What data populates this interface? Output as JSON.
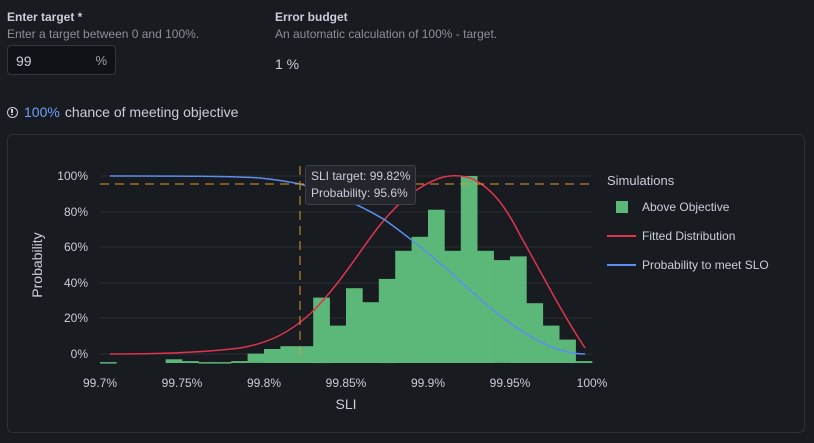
{
  "target_field": {
    "label": "Enter target *",
    "description": "Enter a target between 0 and 100%.",
    "value": "99",
    "suffix": "%"
  },
  "error_budget": {
    "label": "Error budget",
    "description": "An automatic calculation of 100% - target.",
    "value": "1 %"
  },
  "chance": {
    "icon": "info-circle-icon",
    "percent": "100%",
    "text": "chance of meeting objective"
  },
  "tooltip": {
    "line1": "SLI target: 99.82%",
    "line2": "Probability: 95.6%"
  },
  "legend": {
    "title": "Simulations",
    "items": [
      {
        "label": "Above Objective",
        "type": "box",
        "color": "#5cb879"
      },
      {
        "label": "Fitted Distribution",
        "type": "line",
        "color": "#e0344f"
      },
      {
        "label": "Probability to meet SLO",
        "type": "line",
        "color": "#5a8ef0"
      }
    ]
  },
  "chart_data": {
    "type": "bar",
    "title": "",
    "xlabel": "SLI",
    "ylabel": "Probability",
    "x_ticks": [
      "99.7%",
      "99.75%",
      "99.8%",
      "99.85%",
      "99.9%",
      "99.95%",
      "100%"
    ],
    "y_ticks": [
      "0%",
      "20%",
      "40%",
      "60%",
      "80%",
      "100%"
    ],
    "xlim": [
      99.7,
      100
    ],
    "ylim": [
      0,
      100
    ],
    "grid": true,
    "legend_position": "right",
    "series": [
      {
        "name": "Above Objective",
        "type": "histogram",
        "color": "#5cb879",
        "bin_width": 0.01,
        "bins_start": [
          99.7,
          99.74,
          99.75,
          99.76,
          99.77,
          99.78,
          99.79,
          99.8,
          99.81,
          99.82,
          99.83,
          99.84,
          99.85,
          99.86,
          99.87,
          99.88,
          99.89,
          99.9,
          99.91,
          99.92,
          99.93,
          99.94,
          99.95,
          99.96,
          99.97,
          99.98,
          99.99
        ],
        "values": [
          0.5,
          2,
          1,
          0.5,
          0.5,
          1,
          5,
          7.5,
          9,
          9,
          35,
          20,
          40,
          32.5,
          45,
          60,
          67.5,
          82,
          60,
          100,
          60,
          55,
          57,
          32,
          20,
          12.5,
          1
        ]
      },
      {
        "name": "Fitted Distribution",
        "type": "line",
        "color": "#e0344f",
        "x": [
          99.705,
          99.75,
          99.78,
          99.8,
          99.82,
          99.84,
          99.86,
          99.88,
          99.9,
          99.91,
          99.92,
          99.94,
          99.96,
          99.98,
          99.998
        ],
        "values": [
          0,
          0.5,
          2,
          6.5,
          15,
          33,
          56,
          80,
          97,
          100,
          98,
          78,
          48,
          20,
          4
        ]
      },
      {
        "name": "Probability to meet SLO",
        "type": "line",
        "color": "#5a8ef0",
        "x": [
          99.705,
          99.76,
          99.8,
          99.82,
          99.84,
          99.86,
          99.88,
          99.9,
          99.92,
          99.94,
          99.96,
          99.98,
          99.998
        ],
        "values": [
          100,
          100,
          98.5,
          95.6,
          88,
          76,
          61,
          44,
          28,
          15,
          6,
          1.5,
          0
        ]
      }
    ],
    "annotations": [
      {
        "type": "vline",
        "x": 99.82,
        "style": "dashed",
        "color": "#e09a2d"
      },
      {
        "type": "hline",
        "y": 95.6,
        "style": "dashed",
        "color": "#e09a2d"
      },
      {
        "type": "tooltip",
        "text": [
          "SLI target: 99.82%",
          "Probability: 95.6%"
        ]
      }
    ]
  }
}
